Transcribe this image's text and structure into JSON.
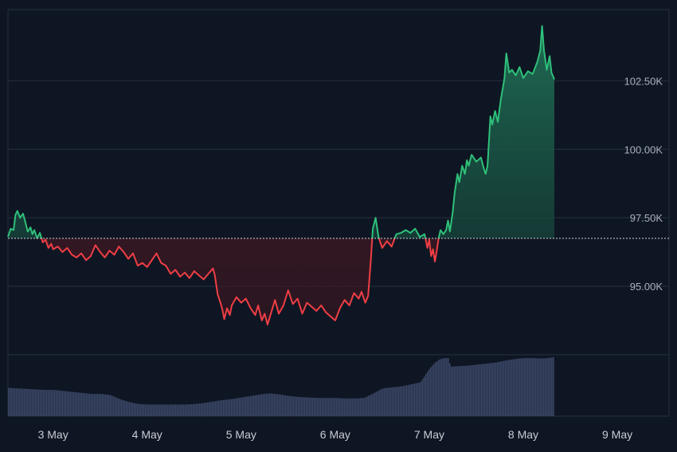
{
  "chart_data": {
    "type": "area",
    "baseline": 96.75,
    "y_ticks": [
      {
        "value": 95.0,
        "label": "95.00K"
      },
      {
        "value": 97.5,
        "label": "97.50K"
      },
      {
        "value": 100.0,
        "label": "100.00K"
      },
      {
        "value": 102.5,
        "label": "102.50K"
      }
    ],
    "x_ticks": [
      {
        "day": 3,
        "label": "3 May"
      },
      {
        "day": 4,
        "label": "4 May"
      },
      {
        "day": 5,
        "label": "5 May"
      },
      {
        "day": 6,
        "label": "6 May"
      },
      {
        "day": 7,
        "label": "7 May"
      },
      {
        "day": 8,
        "label": "8 May"
      },
      {
        "day": 9,
        "label": "9 May"
      }
    ],
    "ylim": [
      92.5,
      105.1
    ],
    "xlim": [
      2.52,
      9.55
    ],
    "grid": true,
    "colors": {
      "background": "#0f1623",
      "grid": "#263040",
      "up": "#2ec07a",
      "down": "#ef3e45",
      "baseline": "#d0d4da",
      "volume": "#3a4766"
    },
    "price_series": [
      [
        2.52,
        96.8
      ],
      [
        2.55,
        97.1
      ],
      [
        2.58,
        97.05
      ],
      [
        2.6,
        97.6
      ],
      [
        2.62,
        97.75
      ],
      [
        2.65,
        97.5
      ],
      [
        2.68,
        97.65
      ],
      [
        2.7,
        97.4
      ],
      [
        2.73,
        97.0
      ],
      [
        2.76,
        97.15
      ],
      [
        2.78,
        96.9
      ],
      [
        2.8,
        97.05
      ],
      [
        2.83,
        96.75
      ],
      [
        2.86,
        96.95
      ],
      [
        2.89,
        96.6
      ],
      [
        2.92,
        96.7
      ],
      [
        2.95,
        96.4
      ],
      [
        2.98,
        96.55
      ],
      [
        3.0,
        96.35
      ],
      [
        3.05,
        96.45
      ],
      [
        3.1,
        96.25
      ],
      [
        3.15,
        96.4
      ],
      [
        3.2,
        96.15
      ],
      [
        3.25,
        96.05
      ],
      [
        3.3,
        96.2
      ],
      [
        3.35,
        95.95
      ],
      [
        3.4,
        96.1
      ],
      [
        3.45,
        96.5
      ],
      [
        3.5,
        96.25
      ],
      [
        3.55,
        96.05
      ],
      [
        3.6,
        96.3
      ],
      [
        3.65,
        96.15
      ],
      [
        3.7,
        96.45
      ],
      [
        3.75,
        96.25
      ],
      [
        3.8,
        96.0
      ],
      [
        3.85,
        96.2
      ],
      [
        3.9,
        95.75
      ],
      [
        3.95,
        95.85
      ],
      [
        4.0,
        95.7
      ],
      [
        4.05,
        95.95
      ],
      [
        4.1,
        96.2
      ],
      [
        4.15,
        95.85
      ],
      [
        4.2,
        95.75
      ],
      [
        4.25,
        95.45
      ],
      [
        4.3,
        95.6
      ],
      [
        4.35,
        95.35
      ],
      [
        4.4,
        95.5
      ],
      [
        4.45,
        95.3
      ],
      [
        4.5,
        95.55
      ],
      [
        4.55,
        95.4
      ],
      [
        4.6,
        95.25
      ],
      [
        4.65,
        95.45
      ],
      [
        4.7,
        95.65
      ],
      [
        4.72,
        95.4
      ],
      [
        4.75,
        94.7
      ],
      [
        4.78,
        94.4
      ],
      [
        4.8,
        94.15
      ],
      [
        4.82,
        93.8
      ],
      [
        4.85,
        94.2
      ],
      [
        4.88,
        93.95
      ],
      [
        4.9,
        94.3
      ],
      [
        4.95,
        94.6
      ],
      [
        5.0,
        94.4
      ],
      [
        5.05,
        94.55
      ],
      [
        5.1,
        94.2
      ],
      [
        5.15,
        93.95
      ],
      [
        5.18,
        94.3
      ],
      [
        5.22,
        93.75
      ],
      [
        5.25,
        94.0
      ],
      [
        5.28,
        93.6
      ],
      [
        5.32,
        94.05
      ],
      [
        5.36,
        94.5
      ],
      [
        5.4,
        94.0
      ],
      [
        5.45,
        94.3
      ],
      [
        5.5,
        94.85
      ],
      [
        5.55,
        94.35
      ],
      [
        5.6,
        94.55
      ],
      [
        5.65,
        94.0
      ],
      [
        5.7,
        94.4
      ],
      [
        5.75,
        94.25
      ],
      [
        5.8,
        94.1
      ],
      [
        5.85,
        94.3
      ],
      [
        5.9,
        94.05
      ],
      [
        5.95,
        93.9
      ],
      [
        6.0,
        93.75
      ],
      [
        6.05,
        94.2
      ],
      [
        6.1,
        94.5
      ],
      [
        6.15,
        94.3
      ],
      [
        6.2,
        94.75
      ],
      [
        6.25,
        94.55
      ],
      [
        6.28,
        94.8
      ],
      [
        6.32,
        94.4
      ],
      [
        6.35,
        94.65
      ],
      [
        6.38,
        96.0
      ],
      [
        6.4,
        97.1
      ],
      [
        6.43,
        97.5
      ],
      [
        6.46,
        96.8
      ],
      [
        6.5,
        96.4
      ],
      [
        6.55,
        96.65
      ],
      [
        6.6,
        96.45
      ],
      [
        6.65,
        96.9
      ],
      [
        6.7,
        96.95
      ],
      [
        6.75,
        97.05
      ],
      [
        6.8,
        96.95
      ],
      [
        6.85,
        97.1
      ],
      [
        6.9,
        96.8
      ],
      [
        6.95,
        96.9
      ],
      [
        6.98,
        96.4
      ],
      [
        7.0,
        96.7
      ],
      [
        7.02,
        96.1
      ],
      [
        7.04,
        96.35
      ],
      [
        7.06,
        95.9
      ],
      [
        7.08,
        96.3
      ],
      [
        7.1,
        96.75
      ],
      [
        7.12,
        97.05
      ],
      [
        7.15,
        96.9
      ],
      [
        7.18,
        97.05
      ],
      [
        7.2,
        97.4
      ],
      [
        7.22,
        97.0
      ],
      [
        7.25,
        97.7
      ],
      [
        7.27,
        98.4
      ],
      [
        7.3,
        99.1
      ],
      [
        7.32,
        98.8
      ],
      [
        7.35,
        99.4
      ],
      [
        7.38,
        99.1
      ],
      [
        7.4,
        99.6
      ],
      [
        7.42,
        99.4
      ],
      [
        7.45,
        99.8
      ],
      [
        7.5,
        99.55
      ],
      [
        7.55,
        99.7
      ],
      [
        7.58,
        99.3
      ],
      [
        7.6,
        99.1
      ],
      [
        7.62,
        99.4
      ],
      [
        7.65,
        101.2
      ],
      [
        7.67,
        100.9
      ],
      [
        7.7,
        101.4
      ],
      [
        7.73,
        101.0
      ],
      [
        7.76,
        101.8
      ],
      [
        7.8,
        102.6
      ],
      [
        7.82,
        103.5
      ],
      [
        7.85,
        102.8
      ],
      [
        7.88,
        102.9
      ],
      [
        7.92,
        102.7
      ],
      [
        7.96,
        103.0
      ],
      [
        8.0,
        102.6
      ],
      [
        8.05,
        102.85
      ],
      [
        8.1,
        102.75
      ],
      [
        8.15,
        103.2
      ],
      [
        8.18,
        103.6
      ],
      [
        8.2,
        104.5
      ],
      [
        8.22,
        103.6
      ],
      [
        8.25,
        102.9
      ],
      [
        8.28,
        103.4
      ],
      [
        8.3,
        102.8
      ],
      [
        8.33,
        102.55
      ]
    ],
    "volume_series": [
      [
        2.52,
        0.56
      ],
      [
        2.6,
        0.55
      ],
      [
        2.7,
        0.54
      ],
      [
        2.8,
        0.53
      ],
      [
        2.9,
        0.52
      ],
      [
        3.0,
        0.52
      ],
      [
        3.1,
        0.5
      ],
      [
        3.2,
        0.48
      ],
      [
        3.3,
        0.46
      ],
      [
        3.4,
        0.44
      ],
      [
        3.5,
        0.44
      ],
      [
        3.6,
        0.42
      ],
      [
        3.7,
        0.34
      ],
      [
        3.8,
        0.28
      ],
      [
        3.9,
        0.24
      ],
      [
        4.0,
        0.23
      ],
      [
        4.1,
        0.23
      ],
      [
        4.2,
        0.23
      ],
      [
        4.3,
        0.23
      ],
      [
        4.4,
        0.23
      ],
      [
        4.5,
        0.24
      ],
      [
        4.6,
        0.26
      ],
      [
        4.7,
        0.29
      ],
      [
        4.8,
        0.32
      ],
      [
        4.9,
        0.34
      ],
      [
        5.0,
        0.37
      ],
      [
        5.1,
        0.4
      ],
      [
        5.2,
        0.43
      ],
      [
        5.3,
        0.45
      ],
      [
        5.4,
        0.43
      ],
      [
        5.5,
        0.4
      ],
      [
        5.6,
        0.38
      ],
      [
        5.7,
        0.37
      ],
      [
        5.8,
        0.36
      ],
      [
        5.9,
        0.36
      ],
      [
        6.0,
        0.36
      ],
      [
        6.1,
        0.35
      ],
      [
        6.2,
        0.35
      ],
      [
        6.3,
        0.36
      ],
      [
        6.4,
        0.45
      ],
      [
        6.5,
        0.55
      ],
      [
        6.6,
        0.57
      ],
      [
        6.7,
        0.59
      ],
      [
        6.8,
        0.63
      ],
      [
        6.9,
        0.67
      ],
      [
        7.0,
        0.95
      ],
      [
        7.05,
        1.05
      ],
      [
        7.1,
        1.12
      ],
      [
        7.15,
        1.15
      ],
      [
        7.2,
        1.15
      ],
      [
        7.22,
        0.98
      ],
      [
        7.3,
        0.99
      ],
      [
        7.4,
        1.0
      ],
      [
        7.5,
        1.02
      ],
      [
        7.6,
        1.04
      ],
      [
        7.7,
        1.06
      ],
      [
        7.8,
        1.1
      ],
      [
        7.9,
        1.13
      ],
      [
        8.0,
        1.15
      ],
      [
        8.1,
        1.15
      ],
      [
        8.2,
        1.14
      ],
      [
        8.3,
        1.16
      ],
      [
        8.33,
        1.18
      ]
    ]
  }
}
